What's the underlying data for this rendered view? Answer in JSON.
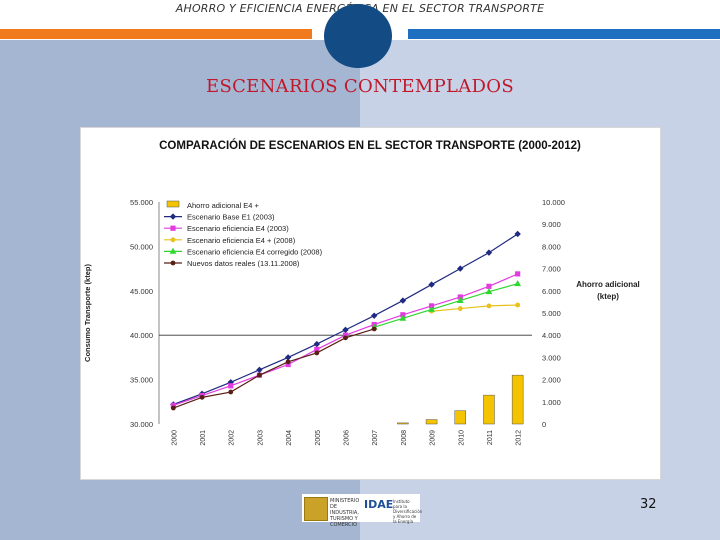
{
  "header": {
    "title": "AHORRO Y EFICIENCIA ENERGÉTICA EN EL SECTOR TRANSPORTE"
  },
  "slide": {
    "title": "ESCENARIOS CONTEMPLADOS",
    "page_number": "32"
  },
  "logos": {
    "gov_text": "MINISTERIO DE INDUSTRIA, TURISMO Y COMERCIO",
    "idae": "IDAE",
    "idae_sub": "Instituto para la Diversificación y Ahorro de la Energía"
  },
  "colors": {
    "accent_orange": "#f07a1c",
    "accent_blue": "#1e6fbf",
    "title_red": "#c0182a",
    "circle": "#134c85"
  },
  "chart_data": {
    "type": "line",
    "title": "COMPARACIÓN DE ESCENARIOS EN EL SECTOR TRANSPORTE (2000-2012)",
    "ylabel": "Consumo Transporte (ktep)",
    "y2label": "Ahorro adicional (ktep)",
    "categories": [
      "2000",
      "2001",
      "2002",
      "2003",
      "2004",
      "2005",
      "2006",
      "2007",
      "2008",
      "2009",
      "2010",
      "2011",
      "2012"
    ],
    "ylim": [
      30000,
      55000
    ],
    "y_ticks": [
      "30.000",
      "35.000",
      "40.000",
      "45.000",
      "50.000",
      "55.000"
    ],
    "y_tick_values": [
      30000,
      35000,
      40000,
      45000,
      50000,
      55000
    ],
    "y2lim": [
      0,
      10000
    ],
    "y2_ticks": [
      "0",
      "1.000",
      "2.000",
      "3.000",
      "4.000",
      "5.000",
      "6.000",
      "7.000",
      "8.000",
      "9.000",
      "10.000"
    ],
    "y2_tick_values": [
      0,
      1000,
      2000,
      3000,
      4000,
      5000,
      6000,
      7000,
      8000,
      9000,
      10000
    ],
    "reference_line": 40000,
    "legend": [
      "Ahorro adicional E4 +",
      "Escenario Base E1 (2003)",
      "Escenario eficiencia E4 (2003)",
      "Escenario eficiencia E4 + (2008)",
      "Escenario eficiencia E4 corregido (2008)",
      "Nuevos datos reales (13.11.2008)"
    ],
    "bars": {
      "name": "Ahorro adicional E4 +",
      "color": "#f5c400",
      "values": [
        null,
        null,
        null,
        null,
        null,
        null,
        null,
        null,
        50,
        200,
        600,
        1300,
        2200
      ]
    },
    "series": [
      {
        "name": "Escenario Base E1 (2003)",
        "color": "#1f2a80",
        "marker": "diamond",
        "values": [
          32200,
          33400,
          34700,
          36100,
          37500,
          39000,
          40600,
          42200,
          43900,
          45700,
          47500,
          49300,
          51400
        ]
      },
      {
        "name": "Escenario eficiencia E4 (2003)",
        "color": "#e23be0",
        "marker": "square",
        "values": [
          32100,
          33200,
          34300,
          35500,
          36700,
          38400,
          40000,
          41200,
          42300,
          43300,
          44300,
          45500,
          46900
        ]
      },
      {
        "name": "Escenario eficiencia E4 + (2008)",
        "color": "#e8c21a",
        "marker": "circle",
        "values": [
          null,
          null,
          null,
          null,
          null,
          null,
          null,
          null,
          null,
          42700,
          43000,
          43300,
          43400
        ]
      },
      {
        "name": "Escenario eficiencia E4 corregido (2008)",
        "color": "#2fd62f",
        "marker": "triangle",
        "values": [
          null,
          null,
          null,
          null,
          null,
          null,
          null,
          40900,
          41900,
          42900,
          43900,
          44900,
          45800
        ]
      },
      {
        "name": "Nuevos datos reales (13.11.2008)",
        "color": "#5a1f14",
        "marker": "circle",
        "values": [
          31800,
          33000,
          33600,
          35500,
          37000,
          38000,
          39700,
          40700,
          null,
          null,
          null,
          null,
          null
        ]
      }
    ]
  }
}
